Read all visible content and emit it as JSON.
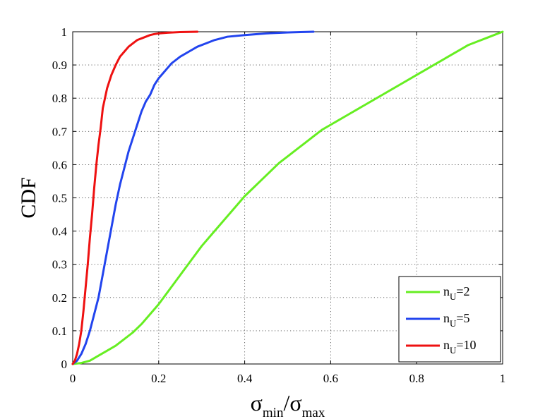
{
  "chart_data": {
    "type": "line",
    "ylabel": "CDF",
    "xlabel": {
      "parts": [
        {
          "text": "σ",
          "sub": "min"
        },
        {
          "text": "/",
          "sub": ""
        },
        {
          "text": "σ",
          "sub": "max"
        }
      ]
    },
    "xlim": [
      0,
      1
    ],
    "ylim": [
      0,
      1
    ],
    "xticks": [
      "0",
      "0.2",
      "0.4",
      "0.6",
      "0.8",
      "1"
    ],
    "yticks": [
      "0",
      "0.1",
      "0.2",
      "0.3",
      "0.4",
      "0.5",
      "0.6",
      "0.7",
      "0.8",
      "0.9",
      "1"
    ],
    "grid": true,
    "legend_position": "bottom-right",
    "series": [
      {
        "name": {
          "base": "n",
          "sub": "U",
          "rest": "=2"
        },
        "color": "#66ee22",
        "x": [
          0.0,
          0.02,
          0.04,
          0.06,
          0.08,
          0.1,
          0.12,
          0.14,
          0.16,
          0.18,
          0.2,
          0.22,
          0.24,
          0.26,
          0.28,
          0.3,
          0.32,
          0.34,
          0.36,
          0.38,
          0.4,
          0.42,
          0.44,
          0.46,
          0.48,
          0.5,
          0.52,
          0.54,
          0.56,
          0.58,
          0.6,
          0.62,
          0.64,
          0.66,
          0.68,
          0.7,
          0.72,
          0.74,
          0.76,
          0.78,
          0.8,
          0.82,
          0.84,
          0.86,
          0.88,
          0.9,
          0.92,
          0.94,
          0.96,
          0.98,
          1.0
        ],
        "y": [
          0.0,
          0.003,
          0.01,
          0.025,
          0.04,
          0.055,
          0.075,
          0.095,
          0.12,
          0.15,
          0.18,
          0.215,
          0.25,
          0.285,
          0.32,
          0.355,
          0.385,
          0.415,
          0.445,
          0.475,
          0.505,
          0.53,
          0.555,
          0.58,
          0.605,
          0.625,
          0.645,
          0.665,
          0.685,
          0.705,
          0.72,
          0.735,
          0.75,
          0.765,
          0.78,
          0.795,
          0.81,
          0.825,
          0.84,
          0.855,
          0.87,
          0.885,
          0.9,
          0.915,
          0.93,
          0.945,
          0.96,
          0.97,
          0.98,
          0.99,
          1.0
        ]
      },
      {
        "name": {
          "base": "n",
          "sub": "U",
          "rest": "=5"
        },
        "color": "#2244ee",
        "x": [
          0.0,
          0.01,
          0.02,
          0.03,
          0.04,
          0.05,
          0.06,
          0.07,
          0.08,
          0.09,
          0.1,
          0.11,
          0.12,
          0.13,
          0.14,
          0.15,
          0.16,
          0.17,
          0.18,
          0.19,
          0.2,
          0.21,
          0.22,
          0.23,
          0.25,
          0.27,
          0.29,
          0.31,
          0.33,
          0.36,
          0.4,
          0.45,
          0.5,
          0.56
        ],
        "y": [
          0.0,
          0.01,
          0.03,
          0.06,
          0.1,
          0.15,
          0.2,
          0.27,
          0.34,
          0.41,
          0.48,
          0.54,
          0.59,
          0.64,
          0.68,
          0.72,
          0.76,
          0.79,
          0.81,
          0.84,
          0.86,
          0.875,
          0.89,
          0.905,
          0.925,
          0.94,
          0.955,
          0.965,
          0.975,
          0.985,
          0.99,
          0.995,
          0.998,
          1.0
        ]
      },
      {
        "name": {
          "base": "n",
          "sub": "U",
          "rest": "=10"
        },
        "color": "#ee1111",
        "x": [
          0.0,
          0.005,
          0.01,
          0.015,
          0.02,
          0.025,
          0.03,
          0.035,
          0.04,
          0.045,
          0.05,
          0.055,
          0.06,
          0.065,
          0.07,
          0.075,
          0.08,
          0.09,
          0.1,
          0.11,
          0.12,
          0.13,
          0.14,
          0.15,
          0.16,
          0.17,
          0.18,
          0.19,
          0.2,
          0.22,
          0.25,
          0.29
        ],
        "y": [
          0.0,
          0.01,
          0.03,
          0.06,
          0.1,
          0.16,
          0.23,
          0.3,
          0.38,
          0.45,
          0.53,
          0.6,
          0.66,
          0.71,
          0.77,
          0.8,
          0.83,
          0.87,
          0.9,
          0.925,
          0.94,
          0.955,
          0.965,
          0.975,
          0.98,
          0.985,
          0.99,
          0.993,
          0.995,
          0.997,
          0.999,
          1.0
        ]
      }
    ]
  }
}
